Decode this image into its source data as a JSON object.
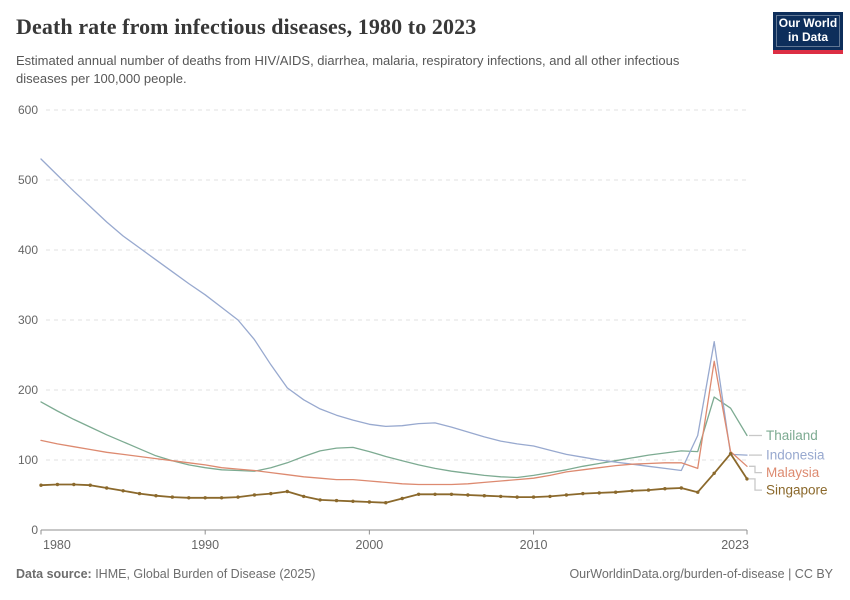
{
  "chart_data": {
    "type": "line",
    "title": "Death rate from infectious diseases, 1980 to 2023",
    "subtitle": "Estimated annual number of deaths from HIV/AIDS, diarrhea, malaria, respiratory infections, and all other infectious diseases per 100,000 people.",
    "xlim": [
      1980,
      2023
    ],
    "ylim": [
      0,
      600
    ],
    "x_ticks": [
      1980,
      1990,
      2000,
      2010,
      2023
    ],
    "y_ticks": [
      0,
      100,
      200,
      300,
      400,
      500,
      600
    ],
    "grid": "horizontal-dashed",
    "legend_position": "right",
    "x": [
      1980,
      1981,
      1982,
      1983,
      1984,
      1985,
      1986,
      1987,
      1988,
      1989,
      1990,
      1991,
      1992,
      1993,
      1994,
      1995,
      1996,
      1997,
      1998,
      1999,
      2000,
      2001,
      2002,
      2003,
      2004,
      2005,
      2006,
      2007,
      2008,
      2009,
      2010,
      2011,
      2012,
      2013,
      2014,
      2015,
      2016,
      2017,
      2018,
      2019,
      2020,
      2021,
      2022,
      2023
    ],
    "series": [
      {
        "name": "Thailand",
        "color": "#7dab92",
        "markers": false,
        "values": [
          183,
          170,
          158,
          147,
          136,
          126,
          116,
          106,
          99,
          93,
          89,
          86,
          85,
          84,
          89,
          96,
          105,
          113,
          117,
          118,
          112,
          105,
          99,
          93,
          88,
          84,
          81,
          78,
          76,
          75,
          78,
          82,
          86,
          91,
          95,
          99,
          103,
          107,
          110,
          113,
          112,
          190,
          174,
          135
        ]
      },
      {
        "name": "Indonesia",
        "color": "#98a9cf",
        "markers": false,
        "values": [
          530,
          507,
          484,
          462,
          440,
          420,
          403,
          386,
          369,
          352,
          336,
          318,
          300,
          272,
          236,
          203,
          186,
          173,
          164,
          157,
          151,
          148,
          149,
          152,
          153,
          147,
          140,
          133,
          127,
          123,
          120,
          114,
          108,
          104,
          100,
          97,
          94,
          91,
          88,
          85,
          135,
          269,
          108,
          107
        ]
      },
      {
        "name": "Malaysia",
        "color": "#dd8a70",
        "markers": false,
        "values": [
          128,
          123,
          119,
          115,
          111,
          108,
          105,
          102,
          99,
          96,
          93,
          89,
          87,
          85,
          82,
          79,
          76,
          74,
          72,
          72,
          70,
          68,
          66,
          65,
          65,
          65,
          66,
          68,
          70,
          72,
          74,
          78,
          83,
          86,
          89,
          92,
          94,
          95,
          96,
          96,
          88,
          241,
          112,
          91
        ]
      },
      {
        "name": "Singapore",
        "color": "#8b692c",
        "markers": true,
        "values": [
          64,
          65,
          65,
          64,
          60,
          56,
          52,
          49,
          47,
          46,
          46,
          46,
          47,
          50,
          52,
          55,
          48,
          43,
          42,
          41,
          40,
          39,
          45,
          51,
          51,
          51,
          50,
          49,
          48,
          47,
          47,
          48,
          50,
          52,
          53,
          54,
          56,
          57,
          59,
          60,
          54,
          81,
          109,
          73
        ]
      }
    ]
  },
  "logo": {
    "line1": "Our World",
    "line2": "in Data",
    "bg_color": "#0d2e5b",
    "accent_color": "#dc2e44"
  },
  "footer": {
    "source_label": "Data source:",
    "source_text": " IHME, Global Burden of Disease (2025)",
    "link_text": "OurWorldinData.org/burden-of-disease",
    "separator": " | ",
    "license_text": "CC BY"
  },
  "colors": {
    "grid": "#e0e0e0",
    "axis": "#8f8f8f",
    "tick_label": "#666666",
    "connector": "#c8c8c8"
  }
}
